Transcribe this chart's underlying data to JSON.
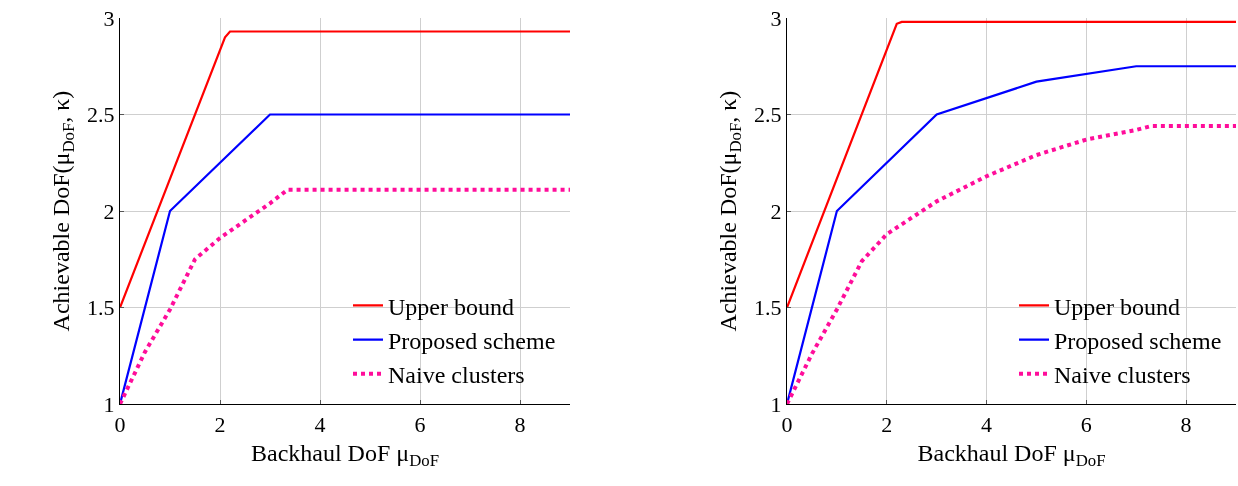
{
  "chart_data": [
    {
      "type": "line",
      "xlabel": "Backhaul DoF μ$_{DoF}$",
      "ylabel": "Achievable DoF(μ$_{DoF}$, κ)",
      "xlim": [
        0,
        9
      ],
      "xticks": [
        0,
        2,
        4,
        6,
        8
      ],
      "ylim": [
        1,
        3
      ],
      "yticks": [
        1,
        1.5,
        2,
        2.5,
        3
      ],
      "grid": true,
      "legend": "bottom right",
      "series": [
        {
          "name": "Upper bound",
          "color": "#ff0000",
          "line_style": "solid",
          "x": [
            0,
            2.1,
            2.2,
            9
          ],
          "values": [
            1.5,
            2.9,
            2.93,
            2.93
          ]
        },
        {
          "name": "Proposed scheme",
          "color": "#0000ff",
          "line_style": "solid",
          "x": [
            0,
            1,
            3,
            9
          ],
          "values": [
            1,
            2,
            2.5,
            2.5
          ]
        },
        {
          "name": "Naive clusters",
          "color": "#ff0d9a",
          "line_style": "dotted",
          "x": [
            0,
            0.5,
            1,
            1.5,
            2,
            3,
            3.35,
            9
          ],
          "values": [
            1,
            1.27,
            1.49,
            1.75,
            1.86,
            2.04,
            2.11,
            2.11
          ]
        }
      ]
    },
    {
      "type": "line",
      "xlabel": "Backhaul DoF μ$_{DoF}$",
      "ylabel": "Achievable DoF(μ$_{DoF}$, κ)",
      "xlim": [
        0,
        9
      ],
      "xticks": [
        0,
        2,
        4,
        6,
        8
      ],
      "ylim": [
        1,
        3
      ],
      "yticks": [
        1,
        1.5,
        2,
        2.5,
        3
      ],
      "grid": true,
      "legend": "bottom right",
      "series": [
        {
          "name": "Upper bound",
          "color": "#ff0000",
          "line_style": "solid",
          "x": [
            0,
            2.2,
            2.3,
            9
          ],
          "values": [
            1.5,
            2.97,
            2.98,
            2.98
          ]
        },
        {
          "name": "Proposed scheme",
          "color": "#0000ff",
          "line_style": "solid",
          "x": [
            0,
            1,
            3,
            5,
            7,
            9
          ],
          "values": [
            1,
            2,
            2.5,
            2.67,
            2.75,
            2.75
          ]
        },
        {
          "name": "Naive clusters",
          "color": "#ff0d9a",
          "line_style": "dotted",
          "x": [
            0,
            0.5,
            1,
            1.5,
            2,
            3,
            4,
            5,
            6,
            7,
            7.3,
            9
          ],
          "values": [
            1,
            1.26,
            1.49,
            1.74,
            1.88,
            2.05,
            2.18,
            2.29,
            2.37,
            2.42,
            2.44,
            2.44
          ]
        }
      ]
    }
  ]
}
